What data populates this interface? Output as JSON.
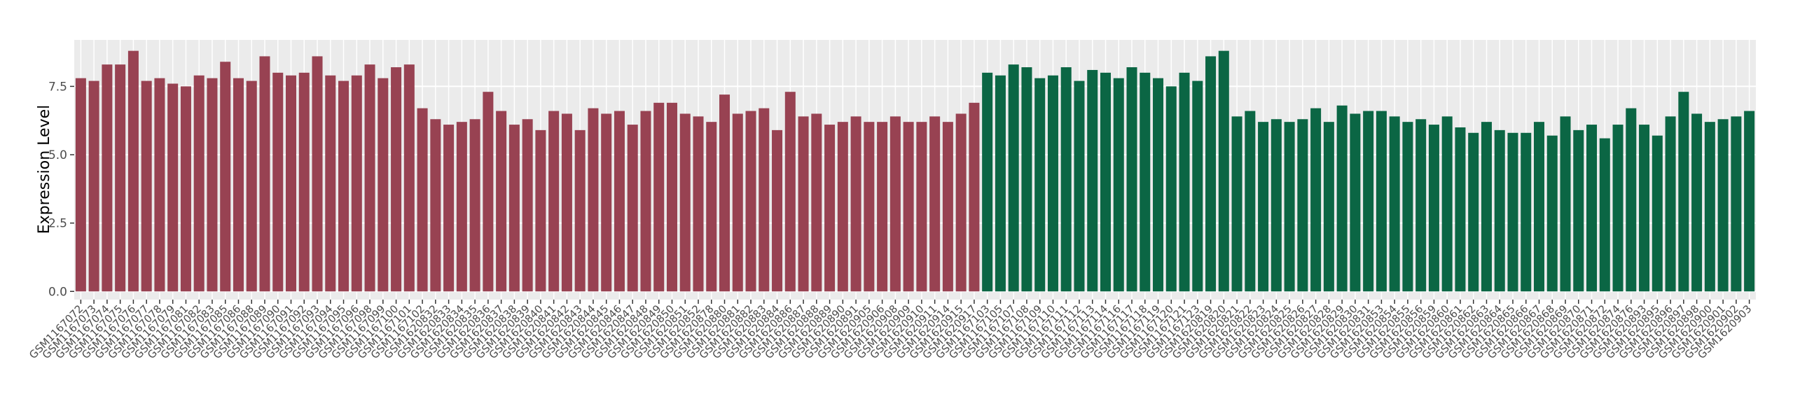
{
  "chart_data": {
    "type": "bar",
    "y_label": "Expression Level",
    "categories": [
      "GSM1167072",
      "GSM1167073",
      "GSM1167074",
      "GSM1167075",
      "GSM1167076",
      "GSM1167077",
      "GSM1167078",
      "GSM1167079",
      "GSM1167081",
      "GSM1167082",
      "GSM1167083",
      "GSM1167085",
      "GSM1167086",
      "GSM1167088",
      "GSM1167089",
      "GSM1167090",
      "GSM1167091",
      "GSM1167092",
      "GSM1167093",
      "GSM1167094",
      "GSM1167095",
      "GSM1167096",
      "GSM1167098",
      "GSM1167099",
      "GSM1167100",
      "GSM1167101",
      "GSM1167102",
      "GSM1620832",
      "GSM1620833",
      "GSM1620834",
      "GSM1620835",
      "GSM1620836",
      "GSM1620837",
      "GSM1620838",
      "GSM1620839",
      "GSM1620840",
      "GSM1620841",
      "GSM1620842",
      "GSM1620843",
      "GSM1620844",
      "GSM1620845",
      "GSM1620846",
      "GSM1620847",
      "GSM1620848",
      "GSM1620849",
      "GSM1620850",
      "GSM1620851",
      "GSM1620852",
      "GSM1620878",
      "GSM1620880",
      "GSM1620881",
      "GSM1620882",
      "GSM1620883",
      "GSM1620884",
      "GSM1620886",
      "GSM1620887",
      "GSM1620888",
      "GSM1620889",
      "GSM1620890",
      "GSM1620891",
      "GSM1620905",
      "GSM1620906",
      "GSM1620908",
      "GSM1620909",
      "GSM1620910",
      "GSM1620911",
      "GSM1620914",
      "GSM1620915",
      "GSM1620917",
      "GSM1167103",
      "GSM1167105",
      "GSM1167107",
      "GSM1167108",
      "GSM1167109",
      "GSM1167110",
      "GSM1167111",
      "GSM1167112",
      "GSM1167113",
      "GSM1167114",
      "GSM1167116",
      "GSM1167117",
      "GSM1167118",
      "GSM1167119",
      "GSM1167120",
      "GSM1167121",
      "GSM1167123",
      "GSM1620819",
      "GSM1620820",
      "GSM1620821",
      "GSM1620822",
      "GSM1620823",
      "GSM1620824",
      "GSM1620825",
      "GSM1620826",
      "GSM1620827",
      "GSM1620828",
      "GSM1620829",
      "GSM1620830",
      "GSM1620831",
      "GSM1620853",
      "GSM1620854",
      "GSM1620855",
      "GSM1620856",
      "GSM1620859",
      "GSM1620860",
      "GSM1620861",
      "GSM1620862",
      "GSM1620863",
      "GSM1620864",
      "GSM1620865",
      "GSM1620866",
      "GSM1620867",
      "GSM1620868",
      "GSM1620869",
      "GSM1620870",
      "GSM1620871",
      "GSM1620872",
      "GSM1620874",
      "GSM1620876",
      "GSM1620893",
      "GSM1620895",
      "GSM1620896",
      "GSM1620897",
      "GSM1620898",
      "GSM1620900",
      "GSM1620901",
      "GSM1620902",
      "GSM1620903"
    ],
    "values": [
      7.8,
      7.7,
      8.3,
      8.3,
      8.8,
      7.7,
      7.8,
      7.6,
      7.5,
      7.9,
      7.8,
      8.4,
      7.8,
      7.7,
      8.6,
      8.0,
      7.9,
      8.0,
      8.6,
      7.9,
      7.7,
      7.9,
      8.3,
      7.8,
      8.2,
      8.3,
      6.7,
      6.3,
      6.1,
      6.2,
      6.3,
      7.3,
      6.6,
      6.1,
      6.3,
      5.9,
      6.6,
      6.5,
      5.9,
      6.7,
      6.5,
      6.6,
      6.1,
      6.6,
      6.9,
      6.9,
      6.5,
      6.4,
      6.2,
      7.2,
      6.5,
      6.6,
      6.7,
      5.9,
      7.3,
      6.4,
      6.5,
      6.1,
      6.2,
      6.4,
      6.2,
      6.2,
      6.4,
      6.2,
      6.2,
      6.4,
      6.2,
      6.5,
      6.9,
      8.0,
      7.9,
      8.3,
      8.2,
      7.8,
      7.9,
      8.2,
      7.7,
      8.1,
      8.0,
      7.8,
      8.2,
      8.0,
      7.8,
      7.5,
      8.0,
      7.7,
      8.6,
      8.8,
      6.4,
      6.6,
      6.2,
      6.3,
      6.2,
      6.3,
      6.7,
      6.2,
      6.8,
      6.5,
      6.6,
      6.6,
      6.4,
      6.2,
      6.3,
      6.1,
      6.4,
      6.0,
      5.8,
      6.2,
      5.9,
      5.8,
      5.8,
      6.2,
      5.7,
      6.4,
      5.9,
      6.1,
      5.6,
      6.1,
      6.7,
      6.1,
      5.7,
      6.4,
      7.3,
      6.5,
      6.2,
      6.3,
      6.4,
      6.6
    ],
    "colors": [
      "#984252",
      "#984252",
      "#984252",
      "#984252",
      "#984252",
      "#984252",
      "#984252",
      "#984252",
      "#984252",
      "#984252",
      "#984252",
      "#984252",
      "#984252",
      "#984252",
      "#984252",
      "#984252",
      "#984252",
      "#984252",
      "#984252",
      "#984252",
      "#984252",
      "#984252",
      "#984252",
      "#984252",
      "#984252",
      "#984252",
      "#984252",
      "#984252",
      "#984252",
      "#984252",
      "#984252",
      "#984252",
      "#984252",
      "#984252",
      "#984252",
      "#984252",
      "#984252",
      "#984252",
      "#984252",
      "#984252",
      "#984252",
      "#984252",
      "#984252",
      "#984252",
      "#984252",
      "#984252",
      "#984252",
      "#984252",
      "#984252",
      "#984252",
      "#984252",
      "#984252",
      "#984252",
      "#984252",
      "#984252",
      "#984252",
      "#984252",
      "#984252",
      "#984252",
      "#984252",
      "#984252",
      "#984252",
      "#984252",
      "#984252",
      "#984252",
      "#984252",
      "#984252",
      "#984252",
      "#984252",
      "#0b6644",
      "#0b6644",
      "#0b6644",
      "#0b6644",
      "#0b6644",
      "#0b6644",
      "#0b6644",
      "#0b6644",
      "#0b6644",
      "#0b6644",
      "#0b6644",
      "#0b6644",
      "#0b6644",
      "#0b6644",
      "#0b6644",
      "#0b6644",
      "#0b6644",
      "#0b6644",
      "#0b6644",
      "#0b6644",
      "#0b6644",
      "#0b6644",
      "#0b6644",
      "#0b6644",
      "#0b6644",
      "#0b6644",
      "#0b6644",
      "#0b6644",
      "#0b6644",
      "#0b6644",
      "#0b6644",
      "#0b6644",
      "#0b6644",
      "#0b6644",
      "#0b6644",
      "#0b6644",
      "#0b6644",
      "#0b6644",
      "#0b6644",
      "#0b6644",
      "#0b6644",
      "#0b6644",
      "#0b6644",
      "#0b6644",
      "#0b6644",
      "#0b6644",
      "#0b6644",
      "#0b6644",
      "#0b6644",
      "#0b6644",
      "#0b6644",
      "#0b6644",
      "#0b6644",
      "#0b6644",
      "#0b6644",
      "#0b6644",
      "#0b6644",
      "#0b6644",
      "#0b6644"
    ],
    "ylim": [
      -0.3,
      9.2
    ],
    "yticks": [
      {
        "value": 0,
        "label": "0.0"
      },
      {
        "value": 2.5,
        "label": "2.5"
      },
      {
        "value": 5,
        "label": "5.0"
      },
      {
        "value": 7.5,
        "label": "7.5"
      }
    ],
    "grid": true
  }
}
